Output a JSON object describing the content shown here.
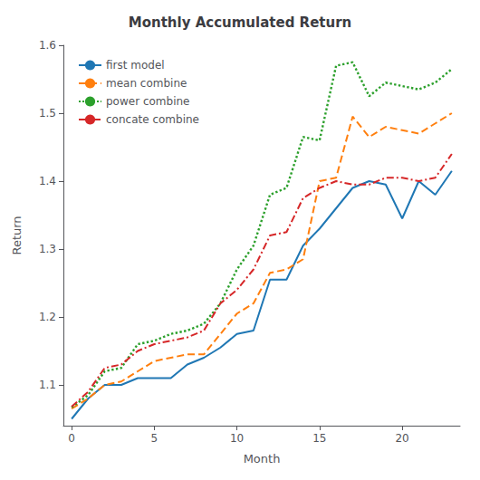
{
  "chart_data": {
    "type": "line",
    "title": "Monthly Accumulated Return",
    "xlabel": "Month",
    "ylabel": "Return",
    "x": [
      0,
      1,
      2,
      3,
      4,
      5,
      6,
      7,
      8,
      9,
      10,
      11,
      12,
      13,
      14,
      15,
      16,
      17,
      18,
      19,
      20,
      21,
      22,
      23
    ],
    "series": [
      {
        "name": "first model",
        "color": "#1f77b4",
        "line_style": "solid",
        "values": [
          1.05,
          1.08,
          1.1,
          1.1,
          1.11,
          1.11,
          1.11,
          1.13,
          1.14,
          1.155,
          1.175,
          1.18,
          1.255,
          1.255,
          1.305,
          1.33,
          1.36,
          1.39,
          1.4,
          1.395,
          1.345,
          1.4,
          1.38,
          1.415
        ]
      },
      {
        "name": "mean combine",
        "color": "#ff7f0e",
        "line_style": "dashed",
        "values": [
          1.065,
          1.08,
          1.1,
          1.105,
          1.12,
          1.135,
          1.14,
          1.145,
          1.145,
          1.175,
          1.205,
          1.22,
          1.265,
          1.27,
          1.285,
          1.4,
          1.405,
          1.495,
          1.465,
          1.48,
          1.475,
          1.47,
          1.485,
          1.5
        ]
      },
      {
        "name": "power combine",
        "color": "#2ca02c",
        "line_style": "dotted",
        "values": [
          1.067,
          1.085,
          1.12,
          1.125,
          1.16,
          1.165,
          1.175,
          1.18,
          1.19,
          1.22,
          1.27,
          1.305,
          1.38,
          1.39,
          1.465,
          1.46,
          1.57,
          1.575,
          1.525,
          1.545,
          1.54,
          1.535,
          1.545,
          1.565
        ]
      },
      {
        "name": "concate combine",
        "color": "#d62728",
        "line_style": "dashdot",
        "values": [
          1.068,
          1.09,
          1.125,
          1.13,
          1.15,
          1.16,
          1.165,
          1.17,
          1.18,
          1.22,
          1.24,
          1.27,
          1.32,
          1.325,
          1.375,
          1.39,
          1.4,
          1.395,
          1.395,
          1.405,
          1.405,
          1.4,
          1.405,
          1.44
        ]
      }
    ],
    "xlim": [
      -0.5,
      23.5
    ],
    "xticks": [
      0,
      5,
      10,
      15,
      20
    ],
    "ylim": [
      1.04,
      1.6
    ],
    "yticks": [
      1.1,
      1.2,
      1.3,
      1.4,
      1.5,
      1.6
    ],
    "grid": false,
    "legend": "upper left"
  }
}
